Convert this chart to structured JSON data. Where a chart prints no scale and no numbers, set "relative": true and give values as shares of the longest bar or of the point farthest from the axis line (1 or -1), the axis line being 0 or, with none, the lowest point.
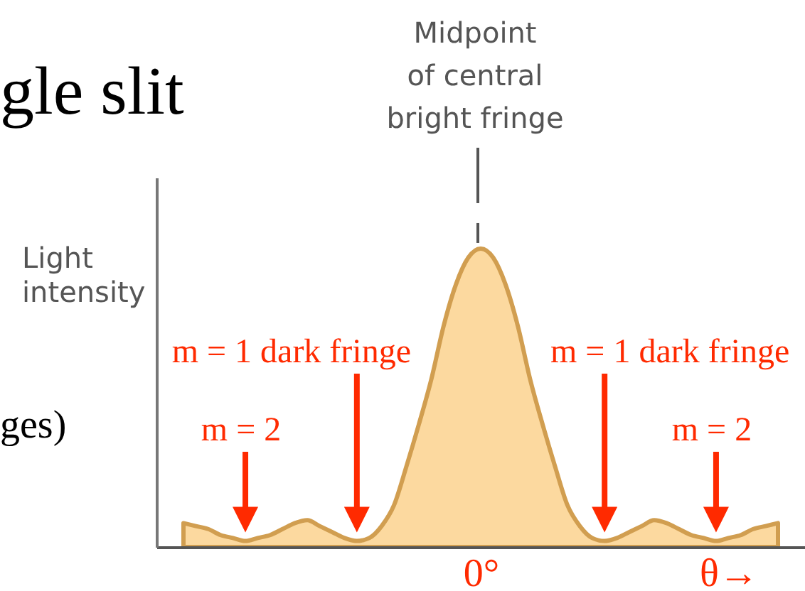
{
  "chart_data": {
    "type": "area",
    "title": "gle slit",
    "ylabel": "Light intensity",
    "relative": true,
    "color": "#fcd99f",
    "categories": [
      null,
      null,
      null,
      null,
      null,
      null,
      null,
      null,
      null,
      null,
      null,
      null,
      null,
      null,
      null,
      null,
      null,
      null,
      null,
      null,
      null,
      null,
      null,
      null,
      "0°",
      null,
      null,
      null,
      null,
      null,
      null,
      null,
      null,
      null,
      null,
      null,
      null,
      null,
      null,
      null,
      null,
      null,
      null,
      null,
      "θ→",
      null,
      null,
      null,
      null
    ],
    "values": [
      0.08,
      0.07,
      0.06,
      0.04,
      0.03,
      0.02,
      0.03,
      0.04,
      0.06,
      0.08,
      0.09,
      0.07,
      0.05,
      0.03,
      0.02,
      0.03,
      0.07,
      0.14,
      0.27,
      0.41,
      0.56,
      0.74,
      0.88,
      0.97,
      1,
      0.97,
      0.88,
      0.74,
      0.56,
      0.41,
      0.27,
      0.14,
      0.07,
      0.03,
      0.02,
      0.03,
      0.05,
      0.07,
      0.09,
      0.08,
      0.06,
      0.04,
      0.03,
      0.02,
      0.03,
      0.04,
      0.06,
      0.07,
      0.08
    ],
    "annotations": [
      {
        "text": "m = 2",
        "y": 0.02
      },
      "m = 1 dark fringe",
      "m = 1 dark fringe",
      {
        "text": "m = 2",
        "y": 0.02
      },
      "Midpoint\nof central\nbright fringe",
      "ges)"
    ]
  }
}
